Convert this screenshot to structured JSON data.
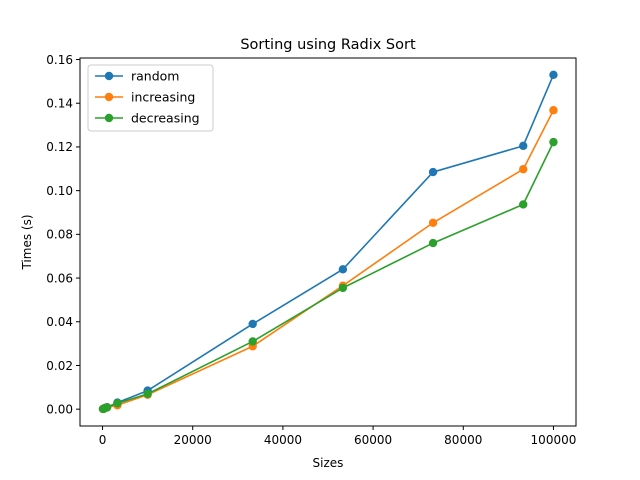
{
  "chart_data": {
    "type": "line",
    "title": "Sorting using Radix Sort",
    "xlabel": "Sizes",
    "ylabel": "Times (s)",
    "xlim": [
      -5000,
      105000
    ],
    "ylim": [
      -0.0077,
      0.1607
    ],
    "xticks": [
      0,
      20000,
      40000,
      60000,
      80000,
      100000
    ],
    "xtick_labels": [
      "0",
      "20000",
      "40000",
      "60000",
      "80000",
      "100000"
    ],
    "yticks": [
      0.0,
      0.02,
      0.04,
      0.06,
      0.08,
      0.1,
      0.12,
      0.14,
      0.16
    ],
    "ytick_labels": [
      "0.00",
      "0.02",
      "0.04",
      "0.06",
      "0.08",
      "0.10",
      "0.12",
      "0.14",
      "0.16"
    ],
    "grid": false,
    "legend_position": "top-left",
    "x": [
      100,
      300,
      600,
      1000,
      3300,
      10000,
      33300,
      53300,
      73300,
      93300,
      100000
    ],
    "series": [
      {
        "name": "random",
        "color": "#1f77b4",
        "values": [
          0.0001,
          0.0003,
          0.0006,
          0.0009,
          0.003,
          0.0085,
          0.039,
          0.064,
          0.1085,
          0.1205,
          0.153
        ]
      },
      {
        "name": "increasing",
        "color": "#ff7f0e",
        "values": [
          0.0001,
          0.0002,
          0.0005,
          0.0008,
          0.0018,
          0.0066,
          0.0288,
          0.0565,
          0.0853,
          0.1098,
          0.1368
        ]
      },
      {
        "name": "decreasing",
        "color": "#2ca02c",
        "values": [
          0.0001,
          0.0002,
          0.0005,
          0.0008,
          0.0027,
          0.007,
          0.031,
          0.0555,
          0.076,
          0.0937,
          0.1222
        ]
      }
    ]
  }
}
